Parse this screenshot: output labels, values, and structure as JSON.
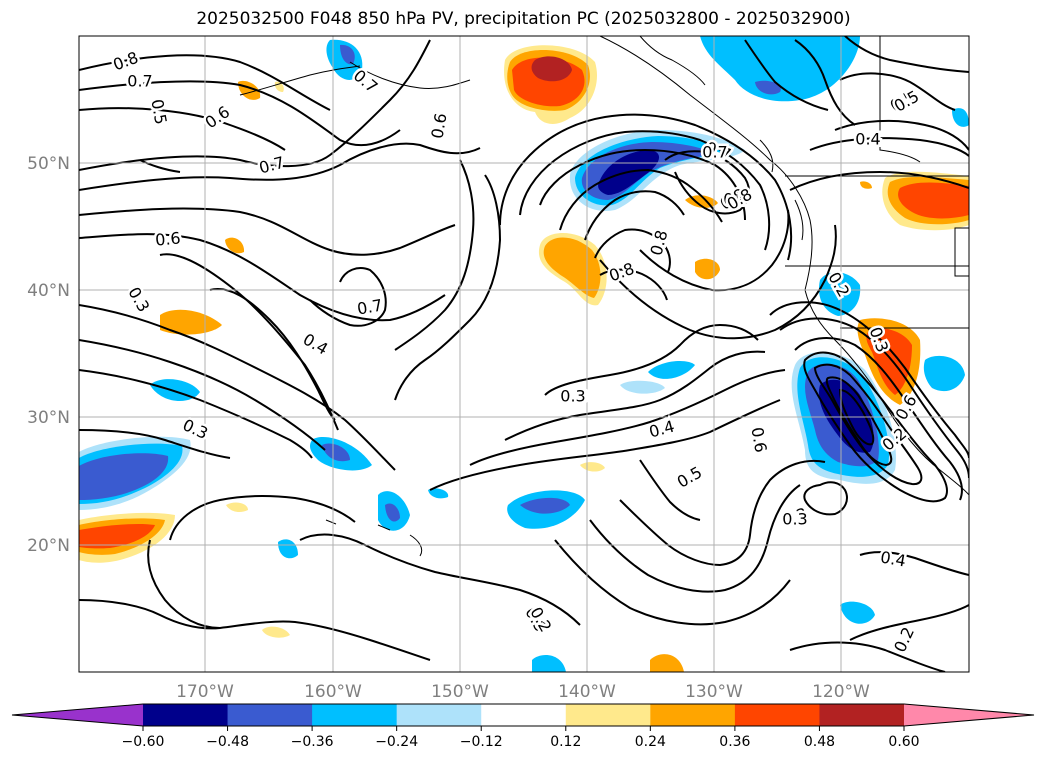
{
  "title": "2025032500 F048 850 hPa PV, precipitation PC (2025032800 - 2025032900)",
  "lat_labels": [
    "50°N",
    "40°N",
    "30°N",
    "20°N"
  ],
  "lon_labels": [
    "170°W",
    "160°W",
    "150°W",
    "140°W",
    "130°W",
    "120°W"
  ],
  "contour_labels": [
    "0.8",
    "0.7",
    "0.5",
    "0.6",
    "0.7",
    "0.6",
    "0.7",
    "0.4",
    "0.3",
    "0.6",
    "0.5",
    "0.8",
    "0.7",
    "0.8",
    "0.6",
    "0.8",
    "0.7",
    "0.4",
    "0.5",
    "0.3",
    "0.3",
    "0.4",
    "0.5",
    "0.2",
    "0.6",
    "0.3",
    "0.3",
    "0.2",
    "0.5",
    "0.4",
    "0.7",
    "0.8",
    "0.3",
    "0.8",
    "0.2",
    "0.3",
    "0.2"
  ],
  "colorbar": {
    "ticks": [
      "−0.60",
      "−0.48",
      "−0.36",
      "−0.24",
      "−0.12",
      "0.12",
      "0.24",
      "0.36",
      "0.48",
      "0.60"
    ],
    "colors": [
      "#9932cc",
      "#00008b",
      "#3a5bd0",
      "#00bfff",
      "#aee2fa",
      "#ffffff",
      "#ffe98c",
      "#ffa500",
      "#ff4500",
      "#b22222",
      "#ff88aa"
    ]
  },
  "colors": {
    "shade_neg_light": "#aee2fa",
    "shade_neg_mid": "#00bfff",
    "shade_neg_strong": "#3a5bd0",
    "shade_neg_max": "#00008b",
    "shade_pos_light": "#ffe98c",
    "shade_pos_mid": "#ffa500",
    "shade_pos_strong": "#ff4500",
    "shade_pos_max": "#b22222"
  }
}
